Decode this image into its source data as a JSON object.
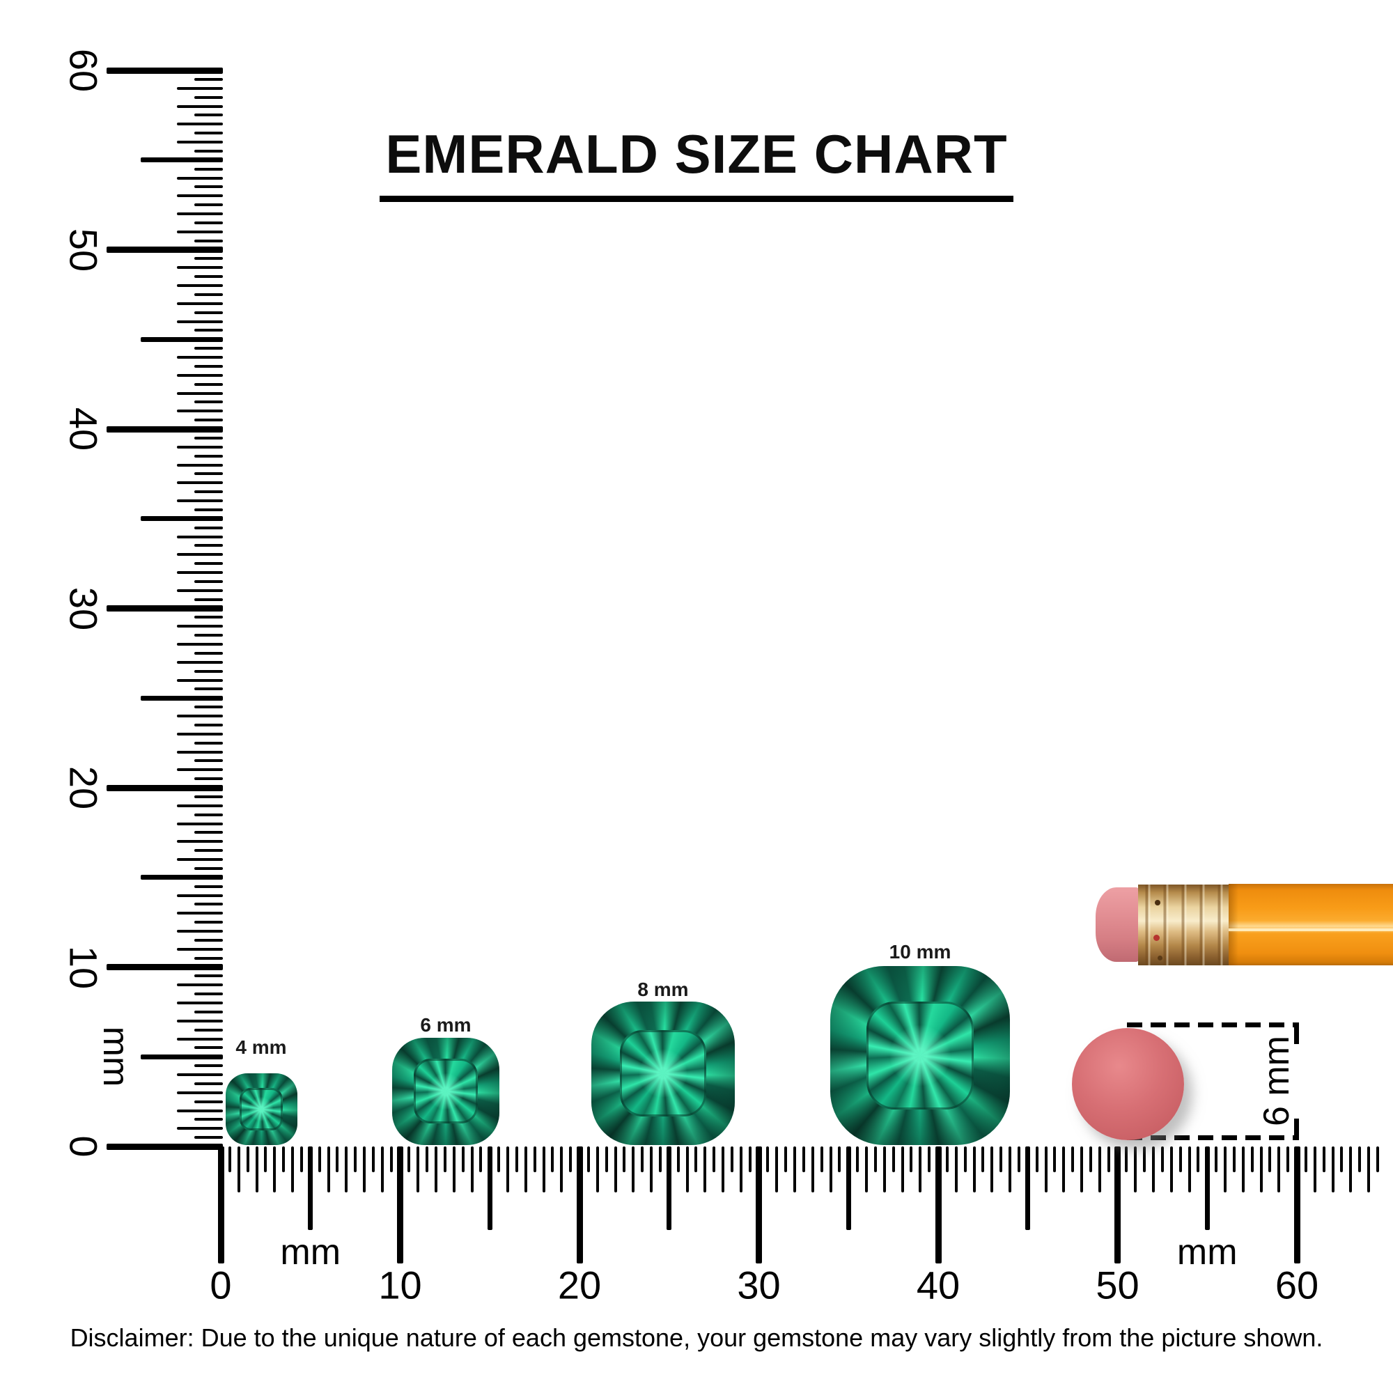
{
  "title": "EMERALD SIZE CHART",
  "disclaimer": "Disclaimer: Due to the unique nature of each gemstone, your gemstone may vary slightly from the picture shown.",
  "rulers": {
    "vertical": {
      "unit_label": "mm",
      "min_mm": 0,
      "max_mm": 60,
      "tick_step_mm": 0.5,
      "labeled_every_mm": 10,
      "labels": [
        "0",
        "10",
        "20",
        "30",
        "40",
        "50",
        "60"
      ]
    },
    "horizontal": {
      "unit_labels": [
        "mm",
        "mm"
      ],
      "min_mm": 0,
      "max_mm": 60,
      "tick_step_mm": 0.5,
      "labeled_every_mm": 10,
      "labels": [
        "0",
        "10",
        "20",
        "30",
        "40",
        "50",
        "60"
      ]
    }
  },
  "gems": [
    {
      "label": "4 mm",
      "size_mm": 4
    },
    {
      "label": "6 mm",
      "size_mm": 6
    },
    {
      "label": "8 mm",
      "size_mm": 8
    },
    {
      "label": "10 mm",
      "size_mm": 10
    }
  ],
  "eraser": {
    "annotation": "6 mm",
    "diameter_mm": 6
  },
  "colors": {
    "ink": "#000000",
    "gem_dark": "#0a4634",
    "gem_mid": "#14a87c",
    "gem_bright": "#33e8ac",
    "eraser_pink": "#d2686c",
    "pencil_orange": "#f89c18",
    "ferrule_gold": "#ead3a0",
    "pencil_eraser_pink": "#e28e93"
  }
}
